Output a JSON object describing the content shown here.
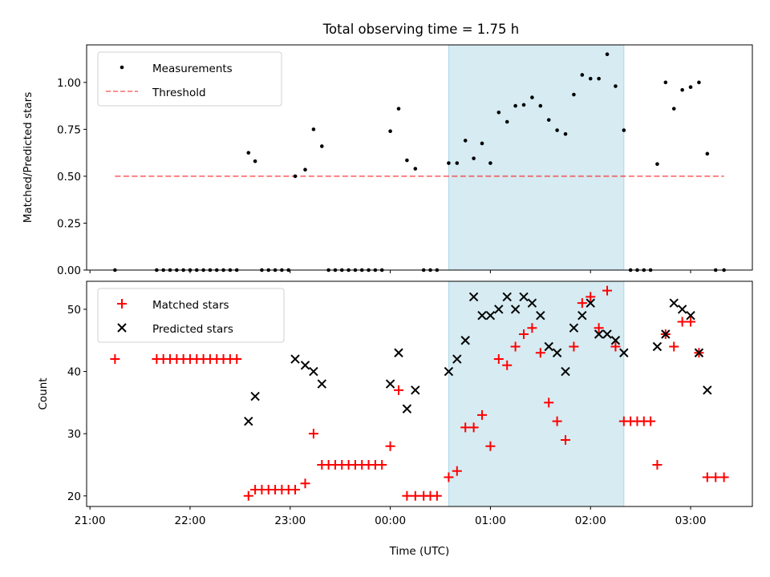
{
  "title": "Total observing time = 1.75 h",
  "xlabel": "Time (UTC)",
  "xticks": [
    "21:00",
    "22:00",
    "23:00",
    "00:00",
    "01:00",
    "02:00",
    "03:00"
  ],
  "colors": {
    "shade": "#add8e6",
    "threshold": "#ff0000",
    "measurement": "#000000",
    "matched": "#ff0000",
    "predicted": "#000000"
  },
  "chart_data": [
    {
      "type": "scatter",
      "ylabel": "Matched/Predicted stars",
      "ylim": [
        0,
        1.2
      ],
      "yticks": [
        "0.00",
        "0.25",
        "0.50",
        "0.75",
        "1.00"
      ],
      "xlim": [
        "20:58",
        "03:37"
      ],
      "shaded_span": [
        "00:35",
        "02:20"
      ],
      "legend": {
        "position": "top-left",
        "entries": [
          "Measurements",
          "Threshold"
        ]
      },
      "threshold": {
        "name": "Threshold",
        "y": 0.5,
        "x": [
          "21:15",
          "03:20"
        ]
      },
      "series": [
        {
          "name": "Measurements",
          "points": [
            [
              "21:15",
              0.0
            ],
            [
              "21:40",
              0.0
            ],
            [
              "21:44",
              0.0
            ],
            [
              "21:48",
              0.0
            ],
            [
              "21:52",
              0.0
            ],
            [
              "21:56",
              0.0
            ],
            [
              "22:00",
              0.0
            ],
            [
              "22:04",
              0.0
            ],
            [
              "22:08",
              0.0
            ],
            [
              "22:12",
              0.0
            ],
            [
              "22:16",
              0.0
            ],
            [
              "22:20",
              0.0
            ],
            [
              "22:24",
              0.0
            ],
            [
              "22:28",
              0.0
            ],
            [
              "22:35",
              0.625
            ],
            [
              "22:39",
              0.58
            ],
            [
              "22:43",
              0.0
            ],
            [
              "22:47",
              0.0
            ],
            [
              "22:51",
              0.0
            ],
            [
              "22:55",
              0.0
            ],
            [
              "22:59",
              0.0
            ],
            [
              "23:03",
              0.5
            ],
            [
              "23:09",
              0.535
            ],
            [
              "23:14",
              0.75
            ],
            [
              "23:19",
              0.66
            ],
            [
              "23:23",
              0.0
            ],
            [
              "23:27",
              0.0
            ],
            [
              "23:31",
              0.0
            ],
            [
              "23:35",
              0.0
            ],
            [
              "23:39",
              0.0
            ],
            [
              "23:43",
              0.0
            ],
            [
              "23:47",
              0.0
            ],
            [
              "23:51",
              0.0
            ],
            [
              "23:55",
              0.0
            ],
            [
              "00:00",
              0.74
            ],
            [
              "00:05",
              0.86
            ],
            [
              "00:10",
              0.585
            ],
            [
              "00:15",
              0.54
            ],
            [
              "00:20",
              0.0
            ],
            [
              "00:24",
              0.0
            ],
            [
              "00:28",
              0.0
            ],
            [
              "00:35",
              0.57
            ],
            [
              "00:40",
              0.57
            ],
            [
              "00:45",
              0.69
            ],
            [
              "00:50",
              0.595
            ],
            [
              "00:55",
              0.675
            ],
            [
              "01:00",
              0.57
            ],
            [
              "01:05",
              0.84
            ],
            [
              "01:10",
              0.79
            ],
            [
              "01:15",
              0.875
            ],
            [
              "01:20",
              0.88
            ],
            [
              "01:25",
              0.92
            ],
            [
              "01:30",
              0.875
            ],
            [
              "01:35",
              0.8
            ],
            [
              "01:40",
              0.745
            ],
            [
              "01:45",
              0.725
            ],
            [
              "01:50",
              0.935
            ],
            [
              "01:55",
              1.04
            ],
            [
              "02:00",
              1.02
            ],
            [
              "02:05",
              1.02
            ],
            [
              "02:10",
              1.15
            ],
            [
              "02:15",
              0.98
            ],
            [
              "02:20",
              0.745
            ],
            [
              "02:24",
              0.0
            ],
            [
              "02:28",
              0.0
            ],
            [
              "02:32",
              0.0
            ],
            [
              "02:36",
              0.0
            ],
            [
              "02:40",
              0.565
            ],
            [
              "02:45",
              1.0
            ],
            [
              "02:50",
              0.86
            ],
            [
              "02:55",
              0.96
            ],
            [
              "03:00",
              0.975
            ],
            [
              "03:05",
              1.0
            ],
            [
              "03:10",
              0.62
            ],
            [
              "03:15",
              0.0
            ],
            [
              "03:20",
              0.0
            ]
          ]
        }
      ]
    },
    {
      "type": "scatter",
      "ylabel": "Count",
      "ylim": [
        18.3,
        54.5
      ],
      "yticks": [
        "20",
        "30",
        "40",
        "50"
      ],
      "xlim": [
        "20:58",
        "03:37"
      ],
      "shaded_span": [
        "00:35",
        "02:20"
      ],
      "legend": {
        "position": "top-left",
        "entries": [
          "Matched stars",
          "Predicted stars"
        ]
      },
      "series": [
        {
          "name": "Matched stars",
          "marker": "plus",
          "points": [
            [
              "21:15",
              42
            ],
            [
              "21:40",
              42
            ],
            [
              "21:44",
              42
            ],
            [
              "21:48",
              42
            ],
            [
              "21:52",
              42
            ],
            [
              "21:56",
              42
            ],
            [
              "22:00",
              42
            ],
            [
              "22:04",
              42
            ],
            [
              "22:08",
              42
            ],
            [
              "22:12",
              42
            ],
            [
              "22:16",
              42
            ],
            [
              "22:20",
              42
            ],
            [
              "22:24",
              42
            ],
            [
              "22:28",
              42
            ],
            [
              "22:35",
              20
            ],
            [
              "22:39",
              21
            ],
            [
              "22:43",
              21
            ],
            [
              "22:47",
              21
            ],
            [
              "22:51",
              21
            ],
            [
              "22:55",
              21
            ],
            [
              "22:59",
              21
            ],
            [
              "23:03",
              21
            ],
            [
              "23:09",
              22
            ],
            [
              "23:14",
              30
            ],
            [
              "23:19",
              25
            ],
            [
              "23:23",
              25
            ],
            [
              "23:27",
              25
            ],
            [
              "23:31",
              25
            ],
            [
              "23:35",
              25
            ],
            [
              "23:39",
              25
            ],
            [
              "23:43",
              25
            ],
            [
              "23:47",
              25
            ],
            [
              "23:51",
              25
            ],
            [
              "23:55",
              25
            ],
            [
              "00:00",
              28
            ],
            [
              "00:05",
              37
            ],
            [
              "00:10",
              20
            ],
            [
              "00:15",
              20
            ],
            [
              "00:20",
              20
            ],
            [
              "00:24",
              20
            ],
            [
              "00:28",
              20
            ],
            [
              "00:35",
              23
            ],
            [
              "00:40",
              24
            ],
            [
              "00:45",
              31
            ],
            [
              "00:50",
              31
            ],
            [
              "00:55",
              33
            ],
            [
              "01:00",
              28
            ],
            [
              "01:05",
              42
            ],
            [
              "01:10",
              41
            ],
            [
              "01:15",
              44
            ],
            [
              "01:20",
              46
            ],
            [
              "01:25",
              47
            ],
            [
              "01:30",
              43
            ],
            [
              "01:35",
              35
            ],
            [
              "01:40",
              32
            ],
            [
              "01:45",
              29
            ],
            [
              "01:50",
              44
            ],
            [
              "01:55",
              51
            ],
            [
              "02:00",
              52
            ],
            [
              "02:05",
              47
            ],
            [
              "02:10",
              53
            ],
            [
              "02:15",
              44
            ],
            [
              "02:20",
              32
            ],
            [
              "02:24",
              32
            ],
            [
              "02:28",
              32
            ],
            [
              "02:32",
              32
            ],
            [
              "02:36",
              32
            ],
            [
              "02:40",
              25
            ],
            [
              "02:45",
              46
            ],
            [
              "02:50",
              44
            ],
            [
              "02:55",
              48
            ],
            [
              "03:00",
              48
            ],
            [
              "03:05",
              43
            ],
            [
              "03:10",
              23
            ],
            [
              "03:15",
              23
            ],
            [
              "03:20",
              23
            ]
          ]
        },
        {
          "name": "Predicted stars",
          "marker": "x",
          "points": [
            [
              "22:35",
              32
            ],
            [
              "22:39",
              36
            ],
            [
              "23:03",
              42
            ],
            [
              "23:09",
              41
            ],
            [
              "23:14",
              40
            ],
            [
              "23:19",
              38
            ],
            [
              "00:00",
              38
            ],
            [
              "00:05",
              43
            ],
            [
              "00:10",
              34
            ],
            [
              "00:15",
              37
            ],
            [
              "00:35",
              40
            ],
            [
              "00:40",
              42
            ],
            [
              "00:45",
              45
            ],
            [
              "00:50",
              52
            ],
            [
              "00:55",
              49
            ],
            [
              "01:00",
              49
            ],
            [
              "01:05",
              50
            ],
            [
              "01:10",
              52
            ],
            [
              "01:15",
              50
            ],
            [
              "01:20",
              52
            ],
            [
              "01:25",
              51
            ],
            [
              "01:30",
              49
            ],
            [
              "01:35",
              44
            ],
            [
              "01:40",
              43
            ],
            [
              "01:45",
              40
            ],
            [
              "01:50",
              47
            ],
            [
              "01:55",
              49
            ],
            [
              "02:00",
              51
            ],
            [
              "02:05",
              46
            ],
            [
              "02:10",
              46
            ],
            [
              "02:15",
              45
            ],
            [
              "02:20",
              43
            ],
            [
              "02:40",
              44
            ],
            [
              "02:45",
              46
            ],
            [
              "02:50",
              51
            ],
            [
              "02:55",
              50
            ],
            [
              "03:00",
              49
            ],
            [
              "03:05",
              43
            ],
            [
              "03:10",
              37
            ]
          ]
        }
      ]
    }
  ]
}
